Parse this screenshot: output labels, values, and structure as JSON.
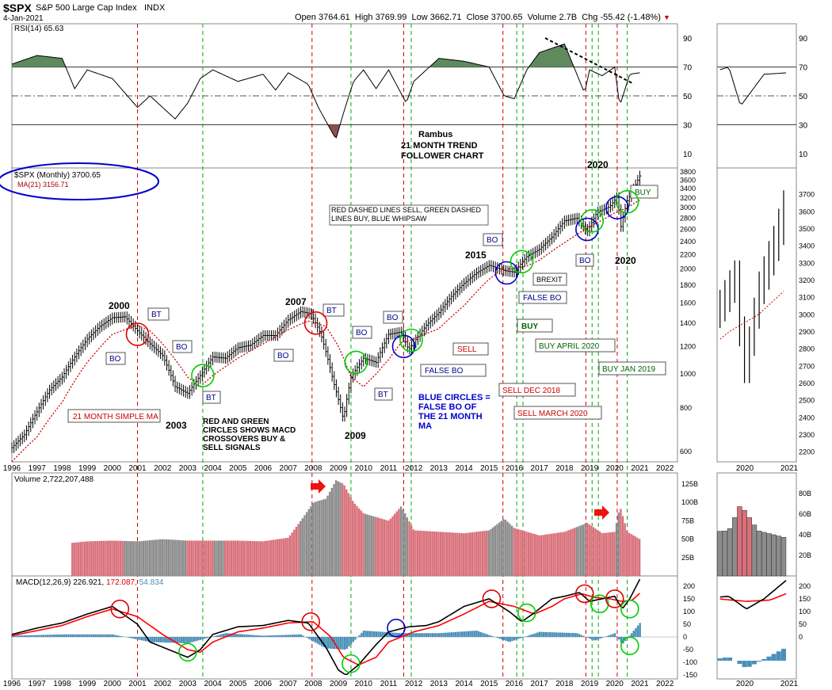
{
  "header": {
    "ticker": "$SPX",
    "name": "S&P 500 Large Cap Index",
    "exchange": "INDX",
    "date": "4-Jan-2021",
    "open_label": "Open",
    "open": "3764.61",
    "high_label": "High",
    "high": "3769.99",
    "low_label": "Low",
    "low": "3662.71",
    "close_label": "Close",
    "close": "3700.65",
    "volume_label": "Volume",
    "volume": "2.7B",
    "chg_label": "Chg",
    "chg": "-55.42 (-1.48%)"
  },
  "colors": {
    "price_bar": "#000000",
    "ma_line": "#cc0000",
    "sell_line": "#d00000",
    "buy_line": "#00aa00",
    "whipsaw_circle": "#0000cc",
    "rsi_fill_high": "#5e8a5e",
    "rsi_fill_low": "#8a5050",
    "volume_up": "#d9707a",
    "volume_down": "#8c8c8c",
    "histogram": "#4a90b8",
    "macd_line": "#000000",
    "signal_line": "#ff0000"
  },
  "chart_data": [
    {
      "type": "line",
      "title": "RSI(14) 65.63",
      "panel": "rsi",
      "yticks": [
        10,
        30,
        50,
        70,
        90
      ],
      "ylim": [
        0,
        100
      ],
      "x": [
        1996.0,
        1997.0,
        1998.0,
        1998.5,
        1999.0,
        2000.0,
        2001.0,
        2001.5,
        2002.5,
        2003.0,
        2003.5,
        2004.0,
        2005.0,
        2006.0,
        2006.5,
        2007.0,
        2007.8,
        2008.2,
        2008.9,
        2009.2,
        2009.6,
        2010.0,
        2010.5,
        2011.0,
        2011.7,
        2012.0,
        2013.0,
        2014.0,
        2015.0,
        2015.6,
        2016.0,
        2016.5,
        2017.0,
        2018.0,
        2018.8,
        2019.0,
        2019.5,
        2020.0,
        2020.2,
        2020.6,
        2021.0
      ],
      "values": [
        72,
        78,
        76,
        55,
        68,
        62,
        42,
        50,
        34,
        45,
        62,
        68,
        60,
        65,
        54,
        66,
        58,
        42,
        20,
        38,
        60,
        68,
        55,
        68,
        45,
        60,
        76,
        74,
        70,
        50,
        48,
        68,
        80,
        86,
        52,
        68,
        64,
        70,
        43,
        65,
        66
      ]
    },
    {
      "type": "line",
      "title": "$SPX (Monthly) 3700.65",
      "panel": "price",
      "yscale": "log",
      "ylim": [
        560,
        3900
      ],
      "yticks": [
        600,
        800,
        1000,
        1200,
        1400,
        1600,
        1800,
        2000,
        2200,
        2400,
        2600,
        2800,
        3000,
        3200,
        3400,
        3600,
        3800
      ],
      "xticks": [
        1996,
        1997,
        1998,
        1999,
        2000,
        2001,
        2002,
        2003,
        2004,
        2005,
        2006,
        2007,
        2008,
        2009,
        2010,
        2011,
        2012,
        2013,
        2014,
        2015,
        2016,
        2017,
        2018,
        2019,
        2020,
        2021,
        2022
      ],
      "series": [
        {
          "name": "$SPX (Monthly) 3700.65",
          "x": [
            1996.0,
            1996.5,
            1997.0,
            1997.5,
            1998.0,
            1998.5,
            1999.0,
            1999.5,
            2000.0,
            2000.5,
            2001.0,
            2001.5,
            2002.0,
            2002.5,
            2003.0,
            2003.5,
            2004.0,
            2004.5,
            2005.0,
            2005.5,
            2006.0,
            2006.5,
            2007.0,
            2007.5,
            2007.9,
            2008.3,
            2008.8,
            2009.2,
            2009.5,
            2010.0,
            2010.5,
            2011.0,
            2011.5,
            2011.8,
            2012.5,
            2013.0,
            2013.5,
            2014.0,
            2014.5,
            2015.0,
            2015.6,
            2016.0,
            2016.5,
            2017.0,
            2017.5,
            2018.0,
            2018.5,
            2018.9,
            2019.3,
            2019.8,
            2020.1,
            2020.25,
            2020.5,
            2020.8,
            2021.0
          ],
          "values": [
            615,
            670,
            780,
            900,
            980,
            1120,
            1260,
            1370,
            1450,
            1460,
            1330,
            1220,
            1130,
            920,
            880,
            990,
            1120,
            1110,
            1190,
            1210,
            1290,
            1290,
            1430,
            1510,
            1490,
            1300,
            950,
            740,
            980,
            1110,
            1080,
            1300,
            1320,
            1170,
            1380,
            1500,
            1670,
            1820,
            1950,
            2050,
            1980,
            1960,
            2170,
            2280,
            2470,
            2750,
            2800,
            2560,
            2910,
            3020,
            3220,
            2650,
            3140,
            3450,
            3700
          ]
        },
        {
          "name": "MA(21) 3156.71",
          "x": [
            1996.0,
            1997.0,
            1998.0,
            1999.0,
            2000.0,
            2001.0,
            2001.5,
            2002.0,
            2003.0,
            2003.5,
            2004.0,
            2005.0,
            2006.0,
            2007.0,
            2007.8,
            2008.5,
            2009.0,
            2009.5,
            2010.0,
            2010.5,
            2011.0,
            2011.5,
            2012.0,
            2013.0,
            2014.0,
            2015.0,
            2015.5,
            2016.0,
            2016.5,
            2017.0,
            2018.0,
            2019.0,
            2019.5,
            2020.0,
            2020.5,
            2021.0
          ],
          "values": [
            560,
            660,
            830,
            1080,
            1300,
            1380,
            1330,
            1220,
            980,
            920,
            990,
            1110,
            1220,
            1340,
            1420,
            1370,
            1200,
            980,
            920,
            1000,
            1100,
            1230,
            1260,
            1350,
            1570,
            1870,
            1990,
            2010,
            2040,
            2120,
            2380,
            2650,
            2760,
            2900,
            3000,
            3157
          ]
        }
      ],
      "annotations": [
        {
          "text": "2000"
        },
        {
          "text": "2003"
        },
        {
          "text": "2007"
        },
        {
          "text": "2009"
        },
        {
          "text": "2015"
        },
        {
          "text": "2020"
        },
        {
          "text": "2020"
        },
        {
          "text": "BT"
        },
        {
          "text": "BT"
        },
        {
          "text": "BT"
        },
        {
          "text": "BT"
        },
        {
          "text": "BO"
        },
        {
          "text": "BO"
        },
        {
          "text": "BO"
        },
        {
          "text": "BO"
        },
        {
          "text": "BO"
        },
        {
          "text": "BO"
        },
        {
          "text": "BO"
        },
        {
          "text": "FALSE BO"
        },
        {
          "text": "FALSE BO"
        },
        {
          "text": "BREXIT"
        },
        {
          "text": "BUY"
        },
        {
          "text": "BUY"
        },
        {
          "text": "SELL"
        },
        {
          "text": "BUY APRIL 2020"
        },
        {
          "text": "BUY JAN 2019"
        },
        {
          "text": "SELL DEC 2018"
        },
        {
          "text": "SELL MARCH 2020"
        },
        {
          "text": "21 MONTH SIMPLE MA"
        },
        {
          "text": "RED DASHED LINES SELL,  GREEN DASHED LINES BUY, BLUE WHIPSAW"
        },
        {
          "text": "BLUE CIRCLES = FALSE BO OF THE 21 MONTH MA"
        },
        {
          "text": "RED AND GREEN CIRCLES SHOWS MACD CROSSOVERS BUY & SELL SIGNALS"
        },
        {
          "text": "Rambus"
        },
        {
          "text": "21 MONTH TREND FOLLOWER CHART"
        }
      ]
    },
    {
      "type": "bar",
      "title": "Volume 2,722,207,488",
      "panel": "volume",
      "yticks_labels": [
        "25B",
        "50B",
        "75B",
        "100B",
        "125B"
      ],
      "ylim": [
        0,
        140
      ],
      "x": [
        1998.4,
        1999.0,
        2000.0,
        2001.0,
        2002.0,
        2003.0,
        2004.0,
        2005.0,
        2006.0,
        2007.0,
        2007.6,
        2008.0,
        2008.5,
        2008.9,
        2009.2,
        2009.6,
        2010.0,
        2011.0,
        2011.5,
        2012.0,
        2013.0,
        2014.0,
        2015.0,
        2015.6,
        2016.0,
        2017.0,
        2018.0,
        2018.9,
        2019.5,
        2020.0,
        2020.2,
        2020.5,
        2021.0
      ],
      "values": [
        45,
        47,
        48,
        47,
        50,
        48,
        48,
        48,
        47,
        52,
        80,
        100,
        105,
        130,
        125,
        100,
        85,
        75,
        95,
        62,
        60,
        58,
        62,
        78,
        65,
        55,
        60,
        72,
        58,
        60,
        95,
        60,
        50
      ]
    },
    {
      "type": "line",
      "title": "MACD(12,26,9) 226.921, 172.087, 54.834",
      "panel": "macd",
      "yticks": [
        -150,
        -100,
        -50,
        0,
        50,
        100,
        150,
        200
      ],
      "ylim": [
        -165,
        240
      ],
      "series": [
        {
          "name": "MACD(12,26,9) 226.921",
          "x": [
            1996.0,
            1997.0,
            1998.0,
            1999.0,
            2000.0,
            2001.0,
            2001.5,
            2002.5,
            2003.0,
            2003.5,
            2004.0,
            2005.0,
            2006.0,
            2007.0,
            2007.8,
            2008.5,
            2009.0,
            2009.3,
            2009.8,
            2010.5,
            2011.0,
            2011.8,
            2012.5,
            2013.0,
            2014.0,
            2015.0,
            2015.8,
            2016.3,
            2016.8,
            2017.5,
            2018.0,
            2018.6,
            2019.0,
            2019.5,
            2020.0,
            2020.3,
            2020.6,
            2021.0
          ],
          "values": [
            10,
            35,
            55,
            90,
            120,
            50,
            -20,
            -60,
            -80,
            -50,
            10,
            40,
            45,
            65,
            55,
            -40,
            -130,
            -150,
            -110,
            -30,
            20,
            40,
            45,
            60,
            120,
            150,
            100,
            60,
            95,
            150,
            160,
            175,
            140,
            150,
            160,
            110,
            150,
            227
          ]
        },
        {
          "name": "172.087",
          "x": [
            1996.0,
            1997.0,
            1998.0,
            1999.0,
            2000.0,
            2001.0,
            2002.0,
            2003.0,
            2003.5,
            2004.0,
            2005.0,
            2006.0,
            2007.0,
            2008.0,
            2008.7,
            2009.2,
            2009.8,
            2010.5,
            2011.0,
            2012.0,
            2013.0,
            2014.0,
            2015.0,
            2016.0,
            2016.8,
            2017.5,
            2018.0,
            2018.7,
            2019.2,
            2019.8,
            2020.3,
            2020.7,
            2021.0
          ],
          "values": [
            5,
            25,
            45,
            80,
            110,
            80,
            10,
            -50,
            -60,
            -20,
            20,
            35,
            55,
            60,
            0,
            -80,
            -110,
            -80,
            -20,
            20,
            45,
            90,
            140,
            120,
            90,
            120,
            150,
            170,
            155,
            150,
            140,
            145,
            172
          ]
        },
        {
          "name": "54.834",
          "x": [
            1996.0,
            1998.0,
            2000.0,
            2001.5,
            2003.0,
            2004.5,
            2006.0,
            2007.5,
            2008.5,
            2009.3,
            2010.0,
            2011.5,
            2013.0,
            2014.5,
            2015.8,
            2017.0,
            2018.5,
            2019.2,
            2020.0,
            2020.3,
            2021.0
          ],
          "values": [
            5,
            10,
            10,
            -20,
            -25,
            15,
            5,
            10,
            -45,
            -50,
            25,
            15,
            15,
            25,
            -20,
            20,
            15,
            -15,
            15,
            -30,
            55
          ]
        }
      ]
    }
  ],
  "inset": {
    "xticks": [
      "2020",
      "2021"
    ],
    "rsi_ticks": [
      "10",
      "30",
      "50",
      "70",
      "90"
    ],
    "price_ticks": [
      "2200",
      "2300",
      "2400",
      "2500",
      "2600",
      "2700",
      "2800",
      "2900",
      "3000",
      "3100",
      "3200",
      "3300",
      "3400",
      "3500",
      "3600",
      "3700"
    ],
    "volume_ticks": [
      "20B",
      "40B",
      "60B",
      "80B"
    ],
    "macd_ticks": [
      "0",
      "50",
      "100",
      "150",
      "200"
    ]
  },
  "labels": {
    "rsi_title": "RSI(14) 65.63",
    "price_legend": "$SPX (Monthly) 3700.65",
    "ma_legend": "MA(21) 3156.71",
    "volume_title": "Volume 2,722,207,488",
    "macd_title_a": "MACD(12,26,9) 226.921,",
    "macd_title_b": "172.087,",
    "macd_title_c": "54.834"
  }
}
